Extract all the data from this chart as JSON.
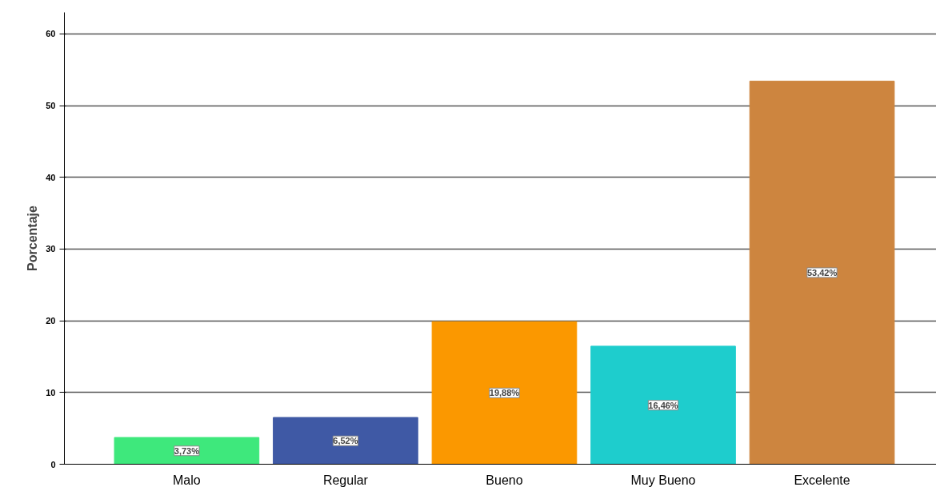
{
  "chart_data": {
    "type": "bar",
    "ylabel": "Porcentaje",
    "categories": [
      "Malo",
      "Regular",
      "Bueno",
      "Muy Bueno",
      "Excelente"
    ],
    "values": [
      3.73,
      6.52,
      19.88,
      16.46,
      53.42
    ],
    "colors": [
      "#3ee87c",
      "#3f59a5",
      "#fb9800",
      "#1ecdcd",
      "#cd853f"
    ],
    "value_labels": [
      "3,73%",
      "6,52%",
      "19,88%",
      "16,46%",
      "53,42%"
    ],
    "ylim": [
      0,
      63
    ],
    "yticks": [
      0,
      10,
      20,
      30,
      40,
      50,
      60
    ],
    "grid": "y"
  }
}
